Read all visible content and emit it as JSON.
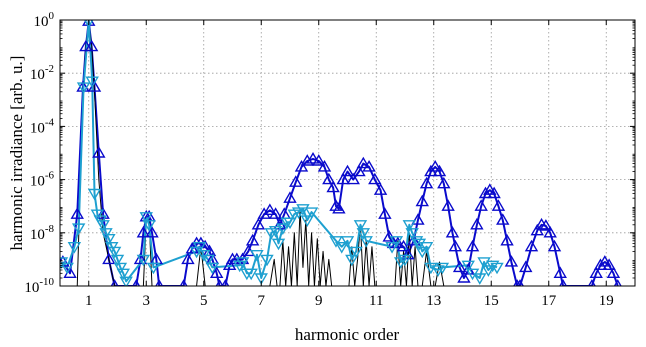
{
  "chart_data": {
    "type": "line",
    "xlabel": "harmonic order",
    "ylabel": "harmonic irradiance [arb. u.]",
    "xlim": [
      0,
      20
    ],
    "ylim": [
      1e-10,
      1
    ],
    "yscale": "log",
    "grid": true,
    "xticks": [
      1,
      3,
      5,
      7,
      9,
      11,
      13,
      15,
      17,
      19
    ],
    "xtick_labels": [
      "1",
      "3",
      "5",
      "7",
      "9",
      "11",
      "13",
      "15",
      "17",
      "19"
    ],
    "yticks": [
      {
        "value": 1,
        "base": "10",
        "exp": "0"
      },
      {
        "value": 0.01,
        "base": "10",
        "exp": "-2"
      },
      {
        "value": 0.0001,
        "base": "10",
        "exp": "-4"
      },
      {
        "value": 1e-06,
        "base": "10",
        "exp": "-6"
      },
      {
        "value": 1e-08,
        "base": "10",
        "exp": "-8"
      },
      {
        "value": 1e-10,
        "base": "10",
        "exp": "-10"
      }
    ],
    "series": [
      {
        "color": "#0a0acc",
        "marker": "triangle-up",
        "line_width": 2,
        "points": [
          [
            0.1,
            8e-10
          ],
          [
            0.35,
            3e-10
          ],
          [
            0.6,
            5e-08
          ],
          [
            0.8,
            0.003
          ],
          [
            0.9,
            0.1
          ],
          [
            1.0,
            0.9
          ],
          [
            1.1,
            0.1
          ],
          [
            1.2,
            0.003
          ],
          [
            1.35,
            1e-05
          ],
          [
            1.5,
            5e-08
          ],
          [
            1.7,
            1e-09
          ],
          [
            1.9,
            1e-10
          ],
          [
            2.65,
            1e-10
          ],
          [
            2.8,
            1e-09
          ],
          [
            2.9,
            1e-08
          ],
          [
            3.0,
            4e-08
          ],
          [
            3.1,
            4e-08
          ],
          [
            3.2,
            1e-08
          ],
          [
            3.35,
            1e-09
          ],
          [
            3.45,
            1e-10
          ],
          [
            4.3,
            1e-10
          ],
          [
            4.45,
            1e-09
          ],
          [
            4.6,
            2.5e-09
          ],
          [
            4.75,
            4e-09
          ],
          [
            4.9,
            4e-09
          ],
          [
            5.05,
            3e-09
          ],
          [
            5.2,
            2e-09
          ],
          [
            5.3,
            1e-09
          ],
          [
            5.45,
            3e-10
          ],
          [
            5.55,
            1e-10
          ],
          [
            5.75,
            1e-10
          ],
          [
            5.9,
            6e-10
          ],
          [
            6.0,
            1e-09
          ],
          [
            6.15,
            1e-09
          ],
          [
            6.35,
            1e-09
          ],
          [
            6.55,
            2e-09
          ],
          [
            6.7,
            5e-09
          ],
          [
            6.9,
            2e-08
          ],
          [
            7.1,
            5e-08
          ],
          [
            7.3,
            7e-08
          ],
          [
            7.5,
            5e-08
          ],
          [
            7.65,
            2e-08
          ],
          [
            7.8,
            5e-08
          ],
          [
            8.0,
            2e-07
          ],
          [
            8.2,
            8e-07
          ],
          [
            8.4,
            3e-06
          ],
          [
            8.6,
            5e-06
          ],
          [
            8.8,
            6e-06
          ],
          [
            9.0,
            5e-06
          ],
          [
            9.2,
            3e-06
          ],
          [
            9.35,
            1e-06
          ],
          [
            9.5,
            5e-07
          ],
          [
            9.6,
            1e-07
          ],
          [
            9.7,
            8e-08
          ],
          [
            9.85,
            1e-06
          ],
          [
            10.0,
            2e-06
          ],
          [
            10.2,
            1e-06
          ],
          [
            10.4,
            2e-06
          ],
          [
            10.55,
            4e-06
          ],
          [
            10.75,
            3e-06
          ],
          [
            10.95,
            1e-06
          ],
          [
            11.15,
            4e-07
          ],
          [
            11.3,
            5e-08
          ],
          [
            11.45,
            7e-09
          ],
          [
            11.6,
            4e-09
          ],
          [
            11.75,
            4e-09
          ],
          [
            11.95,
            3e-09
          ],
          [
            12.1,
            1.5e-09
          ],
          [
            12.3,
            5e-09
          ],
          [
            12.45,
            3e-08
          ],
          [
            12.6,
            1.5e-07
          ],
          [
            12.75,
            7e-07
          ],
          [
            12.9,
            2e-06
          ],
          [
            13.05,
            3e-06
          ],
          [
            13.2,
            2e-06
          ],
          [
            13.35,
            7e-07
          ],
          [
            13.5,
            1e-07
          ],
          [
            13.65,
            1e-08
          ],
          [
            13.75,
            3e-09
          ],
          [
            13.9,
            5e-10
          ],
          [
            14.05,
            2e-10
          ],
          [
            14.2,
            4e-10
          ],
          [
            14.35,
            3e-09
          ],
          [
            14.5,
            2e-08
          ],
          [
            14.65,
            1e-07
          ],
          [
            14.8,
            3e-07
          ],
          [
            14.95,
            4e-07
          ],
          [
            15.1,
            3e-07
          ],
          [
            15.25,
            1e-07
          ],
          [
            15.4,
            3e-08
          ],
          [
            15.55,
            5e-09
          ],
          [
            15.7,
            8e-10
          ],
          [
            15.9,
            1e-10
          ],
          [
            16.0,
            1e-10
          ],
          [
            16.2,
            5e-10
          ],
          [
            16.4,
            3e-09
          ],
          [
            16.6,
            1.2e-08
          ],
          [
            16.75,
            2e-08
          ],
          [
            16.9,
            1.8e-08
          ],
          [
            17.05,
            1e-08
          ],
          [
            17.2,
            3e-09
          ],
          [
            17.4,
            3e-10
          ],
          [
            17.5,
            1e-10
          ],
          [
            18.5,
            1e-10
          ],
          [
            18.65,
            3e-10
          ],
          [
            18.8,
            6e-10
          ],
          [
            18.95,
            8e-10
          ],
          [
            19.1,
            6e-10
          ],
          [
            19.25,
            3e-10
          ],
          [
            19.4,
            1e-10
          ]
        ]
      },
      {
        "color": "#1ea0d0",
        "marker": "triangle-down",
        "line_width": 2,
        "points": [
          [
            0.05,
            8e-10
          ],
          [
            0.25,
            5e-10
          ],
          [
            0.5,
            3e-09
          ],
          [
            0.65,
            1.5e-08
          ],
          [
            0.82,
            0.003
          ],
          [
            1.0,
            0.9
          ],
          [
            1.12,
            0.005
          ],
          [
            1.2,
            3e-07
          ],
          [
            1.3,
            5e-08
          ],
          [
            1.4,
            3e-08
          ],
          [
            1.5,
            2e-08
          ],
          [
            1.6,
            1e-08
          ],
          [
            1.7,
            6e-09
          ],
          [
            1.8,
            3e-09
          ],
          [
            1.9,
            2e-09
          ],
          [
            2.0,
            1e-09
          ],
          [
            2.1,
            5e-10
          ],
          [
            2.2,
            3e-10
          ],
          [
            2.3,
            1.5e-10
          ],
          [
            2.9,
            1e-09
          ],
          [
            3.0,
            4e-08
          ],
          [
            3.1,
            2e-08
          ],
          [
            3.25,
            5e-10
          ],
          [
            4.75,
            2e-09
          ],
          [
            4.85,
            3e-09
          ],
          [
            5.0,
            1.5e-09
          ],
          [
            5.15,
            1e-09
          ],
          [
            5.3,
            5e-10
          ],
          [
            6.25,
            6e-10
          ],
          [
            6.35,
            8e-10
          ],
          [
            6.5,
            3e-10
          ],
          [
            6.65,
            3e-10
          ],
          [
            6.85,
            1.5e-09
          ],
          [
            7.0,
            2e-10
          ],
          [
            7.2,
            1e-09
          ],
          [
            7.35,
            1e-08
          ],
          [
            7.5,
            1.2e-08
          ],
          [
            7.6,
            4e-09
          ],
          [
            7.75,
            1.5e-08
          ],
          [
            7.9,
            2.5e-08
          ],
          [
            8.0,
            2.5e-08
          ],
          [
            8.15,
            5e-08
          ],
          [
            8.3,
            6e-08
          ],
          [
            8.45,
            8e-08
          ],
          [
            8.6,
            3e-08
          ],
          [
            8.75,
            6e-08
          ],
          [
            9.6,
            5e-09
          ],
          [
            9.8,
            3e-09
          ],
          [
            10.0,
            5e-09
          ],
          [
            10.15,
            1e-09
          ],
          [
            10.3,
            2e-09
          ],
          [
            10.45,
            2e-08
          ],
          [
            10.55,
            1e-08
          ],
          [
            10.65,
            5e-09
          ],
          [
            11.55,
            3e-09
          ],
          [
            11.7,
            5e-09
          ],
          [
            11.85,
            8e-10
          ],
          [
            12.0,
            1e-09
          ],
          [
            12.15,
            2e-08
          ],
          [
            12.25,
            1e-08
          ],
          [
            12.4,
            5e-09
          ],
          [
            12.5,
            4e-09
          ],
          [
            12.6,
            2e-09
          ],
          [
            12.75,
            3e-09
          ],
          [
            12.9,
            5e-10
          ],
          [
            13.15,
            4e-10
          ],
          [
            13.3,
            5e-10
          ],
          [
            14.2,
            6e-10
          ],
          [
            14.35,
            3e-10
          ],
          [
            14.6,
            2e-10
          ],
          [
            14.75,
            8e-10
          ],
          [
            14.9,
            4e-10
          ],
          [
            15.05,
            6e-10
          ],
          [
            15.2,
            5e-10
          ]
        ]
      },
      {
        "color": "#000000",
        "marker": "none",
        "line_width": 1,
        "points": [
          [
            0.6,
            1e-10
          ],
          [
            0.8,
            0.002
          ],
          [
            0.9,
            0.1
          ],
          [
            1.0,
            0.9
          ],
          [
            1.1,
            0.1
          ],
          [
            1.2,
            0.002
          ],
          [
            1.35,
            1e-06
          ],
          [
            1.5,
            1e-08
          ],
          [
            1.7,
            1e-09
          ],
          [
            1.9,
            1e-10
          ],
          [
            2.9,
            1e-10
          ],
          [
            3.0,
            3e-08
          ],
          [
            3.1,
            3e-08
          ],
          [
            3.2,
            1e-10
          ],
          [
            4.75,
            1e-10
          ],
          [
            4.9,
            3e-09
          ],
          [
            5.05,
            1e-10
          ],
          [
            7.3,
            1e-10
          ],
          [
            7.45,
            1e-09
          ],
          [
            7.55,
            1e-10
          ],
          [
            7.65,
            1e-10
          ],
          [
            7.75,
            5e-09
          ],
          [
            7.85,
            1e-10
          ],
          [
            7.95,
            3e-09
          ],
          [
            8.05,
            1e-10
          ],
          [
            8.15,
            1e-08
          ],
          [
            8.25,
            1e-10
          ],
          [
            8.35,
            8e-08
          ],
          [
            8.45,
            5e-10
          ],
          [
            8.55,
            3e-08
          ],
          [
            8.65,
            1e-10
          ],
          [
            8.75,
            1e-08
          ],
          [
            8.85,
            1e-10
          ],
          [
            8.95,
            6e-09
          ],
          [
            9.05,
            1e-10
          ],
          [
            9.15,
            2e-09
          ],
          [
            9.25,
            1e-10
          ],
          [
            9.35,
            1e-09
          ],
          [
            9.45,
            1e-10
          ],
          [
            10.05,
            1e-10
          ],
          [
            10.15,
            3e-09
          ],
          [
            10.25,
            1e-10
          ],
          [
            10.35,
            1e-09
          ],
          [
            10.45,
            2e-08
          ],
          [
            10.55,
            1e-10
          ],
          [
            10.65,
            5e-09
          ],
          [
            10.75,
            1e-10
          ],
          [
            10.85,
            3e-09
          ],
          [
            10.95,
            1e-10
          ],
          [
            11.65,
            1e-10
          ],
          [
            11.75,
            5e-09
          ],
          [
            11.85,
            1e-10
          ],
          [
            11.95,
            2e-09
          ],
          [
            12.05,
            1e-10
          ],
          [
            12.15,
            1e-08
          ],
          [
            12.25,
            1e-10
          ],
          [
            12.35,
            3e-09
          ],
          [
            12.45,
            1e-10
          ],
          [
            12.6,
            1e-10
          ],
          [
            12.75,
            2e-09
          ],
          [
            12.9,
            1e-10
          ],
          [
            13.05,
            1e-10
          ],
          [
            13.2,
            8e-10
          ],
          [
            13.35,
            1e-10
          ]
        ]
      }
    ]
  }
}
